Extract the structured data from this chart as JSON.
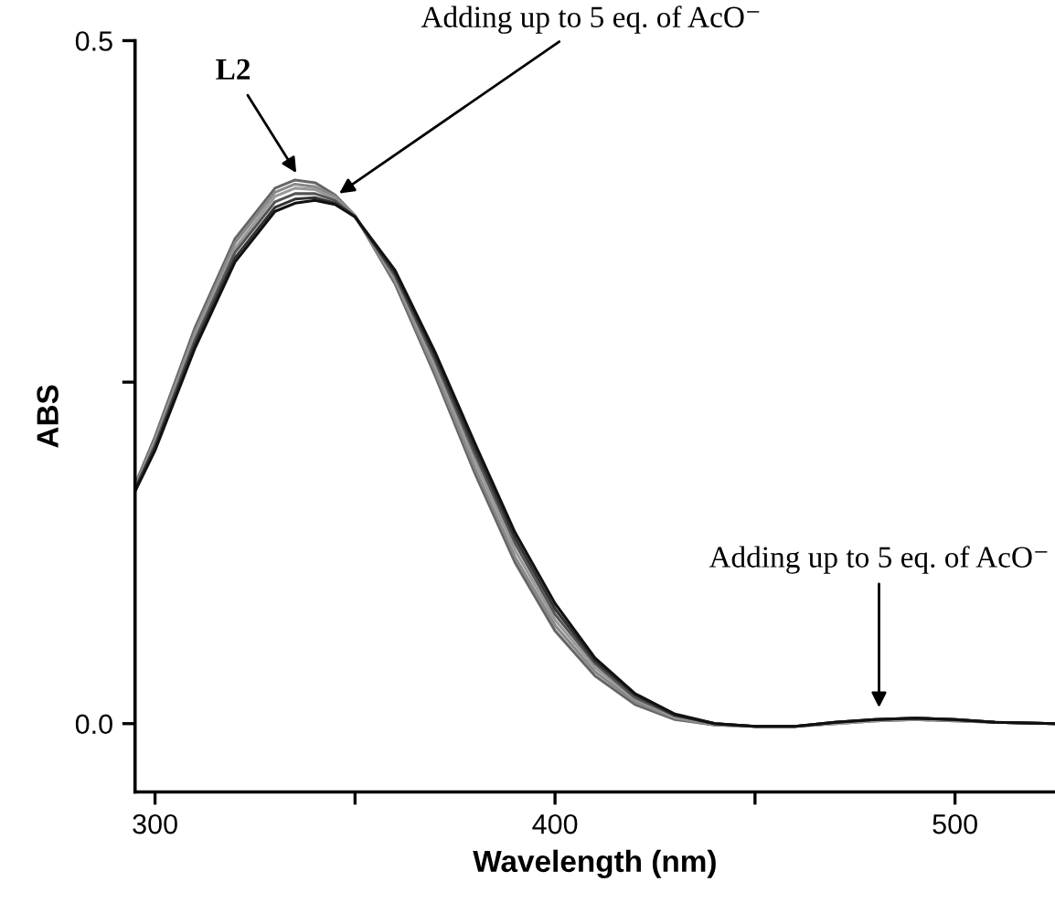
{
  "chart_data": {
    "type": "line",
    "xlabel": "Wavelength (nm)",
    "ylabel": "ABS",
    "x": [
      295,
      300,
      310,
      320,
      330,
      335,
      340,
      345,
      350,
      360,
      370,
      380,
      390,
      400,
      410,
      420,
      430,
      440,
      450,
      460,
      470,
      480,
      490,
      500,
      510,
      525
    ],
    "series": [
      {
        "color": "#666666",
        "values": [
          0.175,
          0.21,
          0.29,
          0.355,
          0.392,
          0.398,
          0.396,
          0.387,
          0.372,
          0.322,
          0.255,
          0.183,
          0.118,
          0.068,
          0.035,
          0.014,
          0.003,
          -0.001,
          -0.002,
          -0.002,
          0.0,
          0.002,
          0.003,
          0.002,
          0.001,
          0.0
        ]
      },
      {
        "color": "#888888",
        "values": [
          0.174,
          0.208,
          0.287,
          0.352,
          0.389,
          0.395,
          0.393,
          0.386,
          0.372,
          0.324,
          0.258,
          0.187,
          0.122,
          0.072,
          0.038,
          0.016,
          0.004,
          -0.001,
          -0.002,
          -0.002,
          0.0,
          0.002,
          0.003,
          0.002,
          0.001,
          0.0
        ]
      },
      {
        "color": "#999999",
        "values": [
          0.173,
          0.206,
          0.284,
          0.348,
          0.386,
          0.392,
          0.391,
          0.384,
          0.371,
          0.326,
          0.262,
          0.192,
          0.127,
          0.076,
          0.041,
          0.018,
          0.005,
          0.0,
          -0.002,
          -0.002,
          0.0,
          0.002,
          0.003,
          0.003,
          0.001,
          0.0
        ]
      },
      {
        "color": "#555555",
        "values": [
          0.172,
          0.204,
          0.281,
          0.345,
          0.382,
          0.388,
          0.388,
          0.383,
          0.371,
          0.328,
          0.266,
          0.197,
          0.132,
          0.08,
          0.044,
          0.019,
          0.006,
          0.0,
          -0.002,
          -0.002,
          0.001,
          0.003,
          0.004,
          0.003,
          0.001,
          0.0
        ]
      },
      {
        "color": "#333333",
        "values": [
          0.171,
          0.202,
          0.278,
          0.341,
          0.378,
          0.384,
          0.385,
          0.381,
          0.371,
          0.33,
          0.269,
          0.201,
          0.136,
          0.084,
          0.046,
          0.021,
          0.006,
          0.0,
          -0.002,
          -0.002,
          0.001,
          0.003,
          0.004,
          0.003,
          0.001,
          0.0
        ]
      },
      {
        "color": "#111111",
        "values": [
          0.17,
          0.2,
          0.275,
          0.338,
          0.375,
          0.381,
          0.383,
          0.38,
          0.371,
          0.332,
          0.272,
          0.205,
          0.14,
          0.088,
          0.048,
          0.022,
          0.007,
          0.0,
          -0.002,
          -0.002,
          0.001,
          0.003,
          0.004,
          0.003,
          0.001,
          0.0
        ]
      }
    ],
    "xlim": [
      295,
      525
    ],
    "ylim": [
      -0.05,
      0.5
    ],
    "xticks": [
      300,
      {
        "value": 350,
        "label": null
      },
      400,
      {
        "value": 450,
        "label": null
      },
      500
    ],
    "yticks": [
      {
        "value": 0.0,
        "label": "0.0"
      },
      {
        "value": 0.25,
        "label": null
      },
      0.5
    ],
    "annotations": [
      {
        "text": "L2",
        "x": 336,
        "y": 0.4
      },
      {
        "text": "Adding up to 5 eq. of AcO⁻",
        "x": 345,
        "y": 0.386
      },
      {
        "text": "Adding up to 5 eq. of AcO⁻",
        "x": 481,
        "y": 0.008
      }
    ],
    "grid": false,
    "legend": false,
    "marker": "none",
    "line_style": "solid"
  }
}
